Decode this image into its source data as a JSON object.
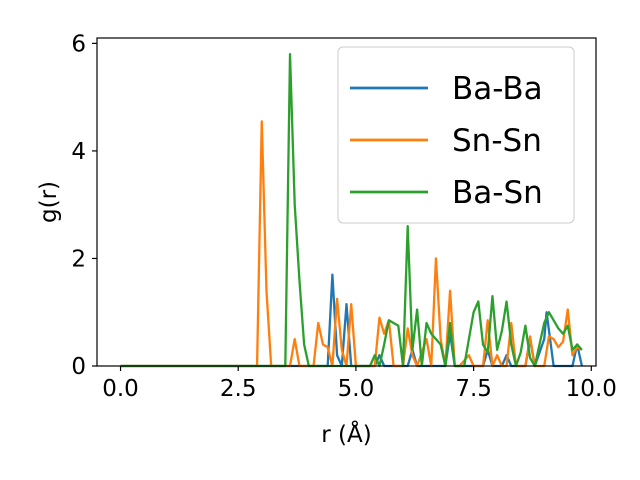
{
  "chart_data": {
    "type": "line",
    "xlabel": "r (Å)",
    "ylabel": "g(r)",
    "xlim": [
      -0.5,
      10.1
    ],
    "ylim": [
      0,
      6.1
    ],
    "xticks": [
      0.0,
      2.5,
      5.0,
      7.5,
      10.0
    ],
    "xtick_labels": [
      "0.0",
      "2.5",
      "5.0",
      "7.5",
      "10.0"
    ],
    "yticks": [
      0,
      2,
      4,
      6
    ],
    "ytick_labels": [
      "0",
      "2",
      "4",
      "6"
    ],
    "grid": false,
    "legend_position": "top-right",
    "series": [
      {
        "name": "Ba-Ba",
        "color": "#1f77b4",
        "points": [
          [
            0,
            0
          ],
          [
            4.4,
            0
          ],
          [
            4.5,
            1.7
          ],
          [
            4.6,
            0.2
          ],
          [
            4.7,
            0
          ],
          [
            4.8,
            1.15
          ],
          [
            4.9,
            0
          ],
          [
            5.0,
            0
          ],
          [
            5.4,
            0
          ],
          [
            5.5,
            0.2
          ],
          [
            5.6,
            0
          ],
          [
            6.1,
            0
          ],
          [
            6.2,
            0.3
          ],
          [
            6.3,
            0
          ],
          [
            6.9,
            0
          ],
          [
            7.0,
            0.6
          ],
          [
            7.1,
            0
          ],
          [
            7.7,
            0
          ],
          [
            7.8,
            0.3
          ],
          [
            7.9,
            0
          ],
          [
            8.1,
            0
          ],
          [
            8.2,
            0.2
          ],
          [
            8.3,
            0
          ],
          [
            8.6,
            0
          ],
          [
            8.7,
            0.5
          ],
          [
            8.8,
            0
          ],
          [
            9.0,
            0.5
          ],
          [
            9.05,
            1.0
          ],
          [
            9.2,
            0
          ],
          [
            9.6,
            0
          ],
          [
            9.7,
            0.4
          ],
          [
            9.8,
            0
          ]
        ]
      },
      {
        "name": "Sn-Sn",
        "color": "#ff7f0e",
        "points": [
          [
            0,
            0
          ],
          [
            2.9,
            0
          ],
          [
            3.0,
            4.55
          ],
          [
            3.1,
            1.4
          ],
          [
            3.2,
            0
          ],
          [
            3.4,
            0
          ],
          [
            3.5,
            0
          ],
          [
            3.6,
            0
          ],
          [
            3.7,
            0.5
          ],
          [
            3.8,
            0
          ],
          [
            4.0,
            0
          ],
          [
            4.1,
            0
          ],
          [
            4.2,
            0.8
          ],
          [
            4.3,
            0.4
          ],
          [
            4.4,
            0.35
          ],
          [
            4.5,
            0
          ],
          [
            4.6,
            1.25
          ],
          [
            4.7,
            0.3
          ],
          [
            4.8,
            0
          ],
          [
            4.9,
            1.15
          ],
          [
            5.0,
            0
          ],
          [
            5.1,
            0
          ],
          [
            5.2,
            0
          ],
          [
            5.4,
            0
          ],
          [
            5.5,
            0.9
          ],
          [
            5.6,
            0.6
          ],
          [
            5.7,
            0.85
          ],
          [
            5.8,
            0
          ],
          [
            6.0,
            0
          ],
          [
            6.1,
            0.7
          ],
          [
            6.2,
            0.2
          ],
          [
            6.3,
            0
          ],
          [
            6.5,
            0.5
          ],
          [
            6.6,
            0
          ],
          [
            6.7,
            2.0
          ],
          [
            6.8,
            0.5
          ],
          [
            6.9,
            0
          ],
          [
            7.0,
            1.4
          ],
          [
            7.1,
            0
          ],
          [
            7.2,
            0
          ],
          [
            7.4,
            0.2
          ],
          [
            7.5,
            0
          ],
          [
            7.6,
            0
          ],
          [
            7.7,
            0
          ],
          [
            7.8,
            0.85
          ],
          [
            7.9,
            0
          ],
          [
            8.0,
            0.2
          ],
          [
            8.1,
            0
          ],
          [
            8.2,
            0
          ],
          [
            8.3,
            0.8
          ],
          [
            8.4,
            0
          ],
          [
            8.6,
            0
          ],
          [
            8.7,
            0.55
          ],
          [
            8.8,
            0
          ],
          [
            9.0,
            0
          ],
          [
            9.1,
            0.55
          ],
          [
            9.2,
            0.5
          ],
          [
            9.3,
            0.35
          ],
          [
            9.4,
            0.45
          ],
          [
            9.5,
            1.05
          ],
          [
            9.6,
            0.2
          ],
          [
            9.7,
            0.35
          ],
          [
            9.8,
            0.3
          ]
        ]
      },
      {
        "name": "Ba-Sn",
        "color": "#2ca02c",
        "points": [
          [
            0,
            0
          ],
          [
            3.4,
            0
          ],
          [
            3.5,
            0
          ],
          [
            3.6,
            5.8
          ],
          [
            3.7,
            3.0
          ],
          [
            3.8,
            1.6
          ],
          [
            3.9,
            0.4
          ],
          [
            4.0,
            0
          ],
          [
            5.3,
            0
          ],
          [
            5.4,
            0.2
          ],
          [
            5.5,
            0
          ],
          [
            5.6,
            0.4
          ],
          [
            5.7,
            0.85
          ],
          [
            5.8,
            0.8
          ],
          [
            5.9,
            0.75
          ],
          [
            6.0,
            0
          ],
          [
            6.1,
            2.6
          ],
          [
            6.2,
            0.3
          ],
          [
            6.3,
            1.05
          ],
          [
            6.4,
            0
          ],
          [
            6.5,
            0.8
          ],
          [
            6.6,
            0.6
          ],
          [
            6.7,
            0.5
          ],
          [
            6.8,
            0.4
          ],
          [
            6.9,
            0
          ],
          [
            7.0,
            0.8
          ],
          [
            7.1,
            0
          ],
          [
            7.2,
            0
          ],
          [
            7.3,
            0
          ],
          [
            7.4,
            0.5
          ],
          [
            7.5,
            1.0
          ],
          [
            7.6,
            1.2
          ],
          [
            7.7,
            0.4
          ],
          [
            7.8,
            0.25
          ],
          [
            7.9,
            1.3
          ],
          [
            8.0,
            0.3
          ],
          [
            8.1,
            0.65
          ],
          [
            8.2,
            1.2
          ],
          [
            8.3,
            0.4
          ],
          [
            8.4,
            0
          ],
          [
            8.5,
            0.25
          ],
          [
            8.6,
            0.75
          ],
          [
            8.7,
            0.15
          ],
          [
            8.8,
            0
          ],
          [
            8.9,
            0.4
          ],
          [
            9.0,
            0.8
          ],
          [
            9.1,
            1.0
          ],
          [
            9.2,
            0.85
          ],
          [
            9.3,
            0.7
          ],
          [
            9.4,
            0.6
          ],
          [
            9.5,
            0.75
          ],
          [
            9.6,
            0.3
          ],
          [
            9.7,
            0.4
          ],
          [
            9.8,
            0.3
          ]
        ]
      }
    ]
  }
}
